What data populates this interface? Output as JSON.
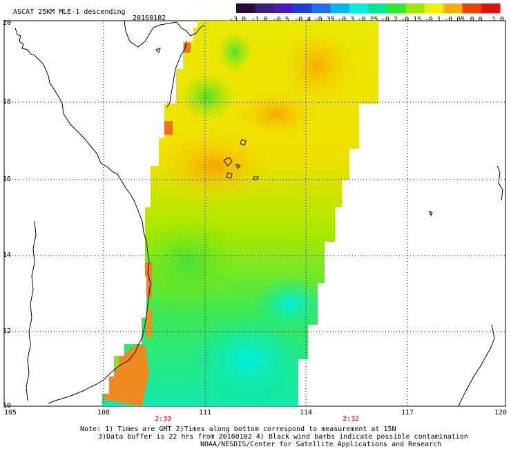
{
  "header": {
    "product": "ASCAT 25KM MLE-1 descending",
    "date": "20160102"
  },
  "colorbar": {
    "tick_labels": [
      "-3.0",
      "-1.0",
      "-0.5",
      "-0.4",
      "-0.35",
      "-0.3",
      "-0.25",
      "-0.2",
      "-0.15",
      "-0.1",
      "-0.05",
      "0.0",
      "1.0"
    ],
    "colors": [
      "#2b0a33",
      "#3a1e7a",
      "#4a1ac0",
      "#1a3cd8",
      "#1a70f0",
      "#00b4f0",
      "#00f0e0",
      "#00e890",
      "#30e830",
      "#a0e800",
      "#f0f000",
      "#f8b000",
      "#f04000",
      "#e01010"
    ]
  },
  "axes": {
    "lon_labels": [
      "105",
      "108",
      "111",
      "114",
      "117",
      "120"
    ],
    "lat_labels": [
      "20",
      "18",
      "16",
      "14",
      "12",
      "10"
    ]
  },
  "swath_times": [
    "2:33",
    "2:32"
  ],
  "notes": [
    "Note: 1) Times are GMT 2)Times along bottom correspond to measurement at 15N",
    "3)Data buffer is 22 hrs from 20160102 4) Black wind barbs indicate possible contamination",
    "NOAA/NESDIS/Center for Satellite Applications and Research"
  ],
  "map_data": {
    "lon_range": [
      105,
      120
    ],
    "lat_range": [
      10,
      20
    ],
    "grid": true
  }
}
